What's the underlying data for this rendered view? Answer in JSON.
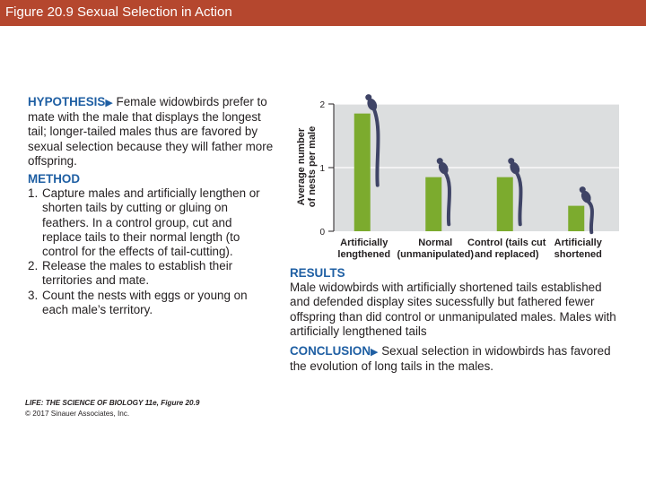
{
  "slide": {
    "title": "Figure 20.9  Sexual Selection in Action"
  },
  "hypothesis": {
    "heading": "HYPOTHESIS",
    "text": "Female widowbirds prefer to mate with the male that displays the longest tail; longer-tailed males thus are favored by sexual selection because they will father more offspring."
  },
  "method": {
    "heading": "METHOD",
    "steps": [
      {
        "num": "1.",
        "text": "Capture males and artificially lengthen or shorten tails by cutting or gluing on feathers. In a control group, cut and replace tails to their normal length (to control for the effects of tail-cutting)."
      },
      {
        "num": "2.",
        "text": "Release the males to establish their territories and mate."
      },
      {
        "num": "3.",
        "text": "Count the nests with eggs or young on each male’s territory."
      }
    ]
  },
  "results": {
    "heading": "RESULTS",
    "text": "Male widowbirds with artificially shortened tails established and defended display sites sucessfully but fathered fewer offspring than did control or unmanipulated males. Males with artificially lengthened tails"
  },
  "conclusion": {
    "heading": "CONCLUSION",
    "text": "Sexual selection in widowbirds has favored the evolution of long tails in the males."
  },
  "credit": {
    "book": "LIFE: THE SCIENCE OF BIOLOGY 11e, Figure 20.9",
    "copyright": "© 2017 Sinauer Associates, Inc."
  },
  "colors": {
    "title_bar": "#b5472e",
    "heading": "#1f5fa3",
    "bar": "#7cab2e",
    "plot_bg": "#dcdedf",
    "bird": "#3f4466"
  },
  "chart_data": {
    "type": "bar",
    "categories": [
      [
        "Artificially",
        "lengthened"
      ],
      [
        "Normal",
        "(unmanipulated)"
      ],
      [
        "Control (tails cut",
        "and replaced)"
      ],
      [
        "Artificially",
        "shortened"
      ]
    ],
    "values": [
      1.85,
      0.85,
      0.85,
      0.4
    ],
    "ylabel_lines": [
      "Average number",
      "of nests per male"
    ],
    "ylim": [
      0,
      2
    ],
    "yticks": [
      "0",
      "1",
      "2"
    ],
    "ytick_values": [
      0,
      1,
      2
    ],
    "grid": true,
    "icons": [
      "widowbird-long-tail-icon",
      "widowbird-normal-tail-icon",
      "widowbird-control-tail-icon",
      "widowbird-short-tail-icon"
    ],
    "tail_lengths": [
      1.0,
      0.62,
      0.62,
      0.3
    ]
  }
}
